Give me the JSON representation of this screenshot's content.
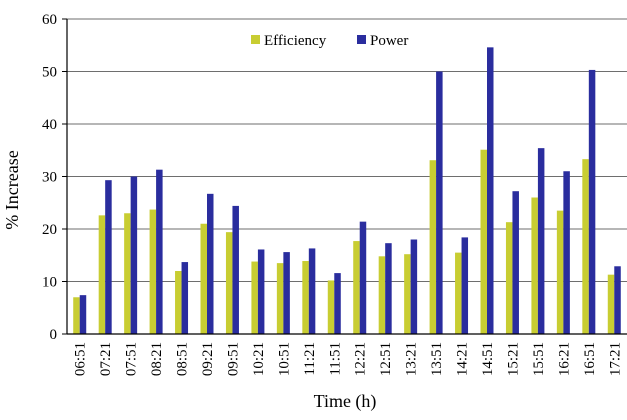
{
  "chart_data": {
    "type": "bar",
    "title": "",
    "xlabel": "Time (h)",
    "ylabel": "% Increase",
    "ylim": [
      0,
      60
    ],
    "yticks": [
      0,
      10,
      20,
      30,
      40,
      50,
      60
    ],
    "grid": true,
    "legend_position": "top-center",
    "categories": [
      "06:51",
      "07:21",
      "07:51",
      "08:21",
      "08:51",
      "09:21",
      "09:51",
      "10:21",
      "10:51",
      "11:21",
      "11:51",
      "12:21",
      "12:51",
      "13:21",
      "13:51",
      "14:21",
      "14:51",
      "15:21",
      "15:51",
      "16:21",
      "16:51",
      "17:21"
    ],
    "series": [
      {
        "name": "Efficiency",
        "color": "#c8cd32",
        "values": [
          7.0,
          22.6,
          23.0,
          23.7,
          12.0,
          21.0,
          19.4,
          13.8,
          13.5,
          13.9,
          10.2,
          17.7,
          14.8,
          15.2,
          33.1,
          15.5,
          35.1,
          21.3,
          26.0,
          23.5,
          33.3,
          11.3
        ]
      },
      {
        "name": "Power",
        "color": "#2a2d9e",
        "values": [
          7.4,
          29.3,
          30.0,
          31.3,
          13.7,
          26.7,
          24.4,
          16.1,
          15.6,
          16.3,
          11.6,
          21.4,
          17.3,
          18.0,
          50.0,
          18.4,
          54.6,
          27.2,
          35.4,
          31.0,
          50.3,
          12.9
        ]
      }
    ]
  }
}
